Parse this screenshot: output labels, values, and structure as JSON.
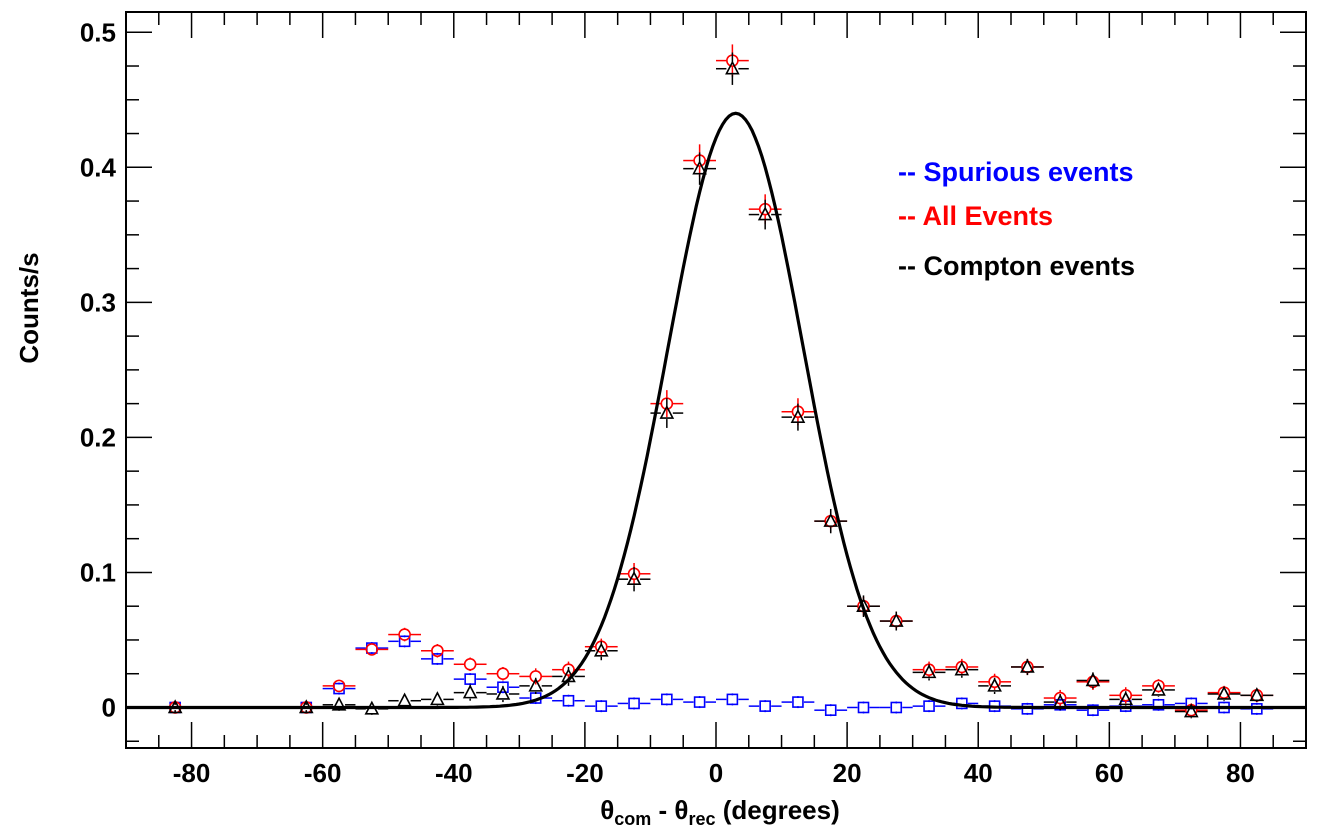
{
  "chart_data": {
    "type": "scatter",
    "ylabel": "Counts/s",
    "xlabel": {
      "theta": "θ",
      "sub1": "com",
      "minus": " - ",
      "sub2": "rec",
      "units": " (degrees)"
    },
    "xlim": [
      -90,
      90
    ],
    "ylim": [
      -0.03,
      0.515
    ],
    "x_ticks": [
      -80,
      -60,
      -40,
      -20,
      0,
      20,
      40,
      60,
      80
    ],
    "x_tick_labels": [
      "-80",
      "-60",
      "-40",
      "-20",
      "0",
      "20",
      "40",
      "60",
      "80"
    ],
    "y_ticks": [
      0,
      0.1,
      0.2,
      0.3,
      0.4,
      0.5
    ],
    "y_tick_labels": [
      "0",
      "0.1",
      "0.2",
      "0.3",
      "0.4",
      "0.5"
    ],
    "grid": false,
    "legend": {
      "placement": "top-right",
      "entries": [
        {
          "label": "-- Spurious events",
          "color": "#0000ff"
        },
        {
          "label": "-- All Events",
          "color": "#ff0000"
        },
        {
          "label": "-- Compton events",
          "color": "#000000"
        }
      ]
    },
    "series": [
      {
        "marker": "square",
        "color": "#0000ff",
        "x": [
          -82.5,
          -62.5,
          -57.5,
          -52.5,
          -47.5,
          -42.5,
          -37.5,
          -32.5,
          -27.5,
          -22.5,
          -17.5,
          -12.5,
          -7.5,
          -2.5,
          2.5,
          7.5,
          12.5,
          17.5,
          22.5,
          27.5,
          32.5,
          37.5,
          42.5,
          47.5,
          52.5,
          57.5,
          62.5,
          67.5,
          72.5,
          77.5,
          82.5
        ],
        "y": [
          0,
          0,
          0.014,
          0.044,
          0.049,
          0.036,
          0.021,
          0.015,
          0.007,
          0.005,
          0.001,
          0.003,
          0.006,
          0.004,
          0.006,
          0.001,
          0.004,
          -0.002,
          0,
          0,
          0.001,
          0.003,
          0.001,
          -0.001,
          0.002,
          -0.002,
          0.001,
          0.002,
          0.003,
          0,
          -0.001
        ],
        "yerr": [
          0,
          0,
          0.003,
          0.003,
          0.003,
          0.003,
          0.003,
          0.003,
          0.003,
          0.003,
          0.003,
          0.003,
          0.003,
          0.003,
          0.003,
          0.003,
          0.003,
          0.003,
          0.003,
          0.003,
          0.003,
          0.003,
          0.003,
          0.003,
          0.003,
          0.003,
          0.003,
          0.003,
          0.003,
          0.003,
          0.003
        ]
      },
      {
        "marker": "circle",
        "color": "#ff0000",
        "x": [
          -82.5,
          -62.5,
          -57.5,
          -52.5,
          -47.5,
          -42.5,
          -37.5,
          -32.5,
          -27.5,
          -22.5,
          -17.5,
          -12.5,
          -7.5,
          -2.5,
          2.5,
          7.5,
          12.5,
          17.5,
          22.5,
          27.5,
          32.5,
          37.5,
          42.5,
          47.5,
          52.5,
          57.5,
          62.5,
          67.5,
          72.5,
          77.5,
          82.5
        ],
        "y": [
          0,
          0,
          0.016,
          0.043,
          0.054,
          0.042,
          0.032,
          0.025,
          0.023,
          0.028,
          0.045,
          0.099,
          0.225,
          0.405,
          0.479,
          0.369,
          0.219,
          0.138,
          0.075,
          0.064,
          0.028,
          0.03,
          0.019,
          0.03,
          0.007,
          0.019,
          0.009,
          0.016,
          -0.002,
          0.011,
          0.009
        ],
        "yerr": [
          0.002,
          0.002,
          0.004,
          0.004,
          0.005,
          0.005,
          0.005,
          0.005,
          0.006,
          0.006,
          0.006,
          0.008,
          0.01,
          0.012,
          0.012,
          0.011,
          0.01,
          0.008,
          0.007,
          0.007,
          0.006,
          0.006,
          0.006,
          0.006,
          0.006,
          0.006,
          0.006,
          0.005,
          0.005,
          0.005,
          0.005
        ]
      },
      {
        "marker": "triangle",
        "color": "#000000",
        "x": [
          -82.5,
          -62.5,
          -57.5,
          -52.5,
          -47.5,
          -42.5,
          -37.5,
          -32.5,
          -27.5,
          -22.5,
          -17.5,
          -12.5,
          -7.5,
          -2.5,
          2.5,
          7.5,
          12.5,
          17.5,
          22.5,
          27.5,
          32.5,
          37.5,
          42.5,
          47.5,
          52.5,
          57.5,
          62.5,
          67.5,
          72.5,
          77.5,
          82.5
        ],
        "y": [
          0,
          0,
          0.002,
          -0.001,
          0.005,
          0.006,
          0.011,
          0.01,
          0.016,
          0.023,
          0.042,
          0.095,
          0.218,
          0.399,
          0.473,
          0.365,
          0.215,
          0.138,
          0.075,
          0.064,
          0.026,
          0.028,
          0.016,
          0.03,
          0.004,
          0.02,
          0.006,
          0.013,
          -0.003,
          0.01,
          0.009
        ],
        "yerr": [
          0.002,
          0.002,
          0.004,
          0.004,
          0.005,
          0.005,
          0.006,
          0.006,
          0.006,
          0.007,
          0.007,
          0.009,
          0.011,
          0.012,
          0.012,
          0.011,
          0.01,
          0.009,
          0.008,
          0.007,
          0.006,
          0.006,
          0.006,
          0.006,
          0.006,
          0.006,
          0.006,
          0.005,
          0.005,
          0.005,
          0.005
        ]
      }
    ],
    "fit": {
      "type": "line",
      "color": "#000000",
      "function": "gaussian",
      "amplitude": 0.44,
      "mean": 3,
      "sigma": 10.3
    }
  }
}
